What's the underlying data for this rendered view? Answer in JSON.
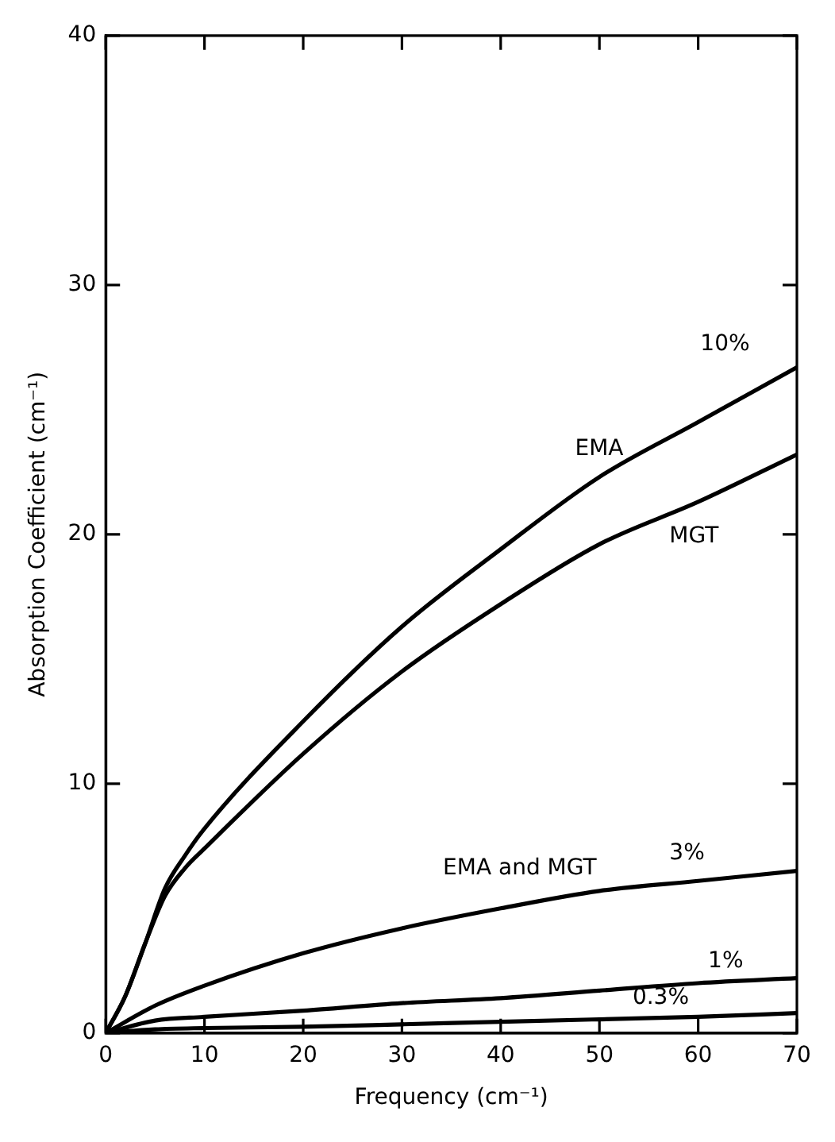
{
  "chart_data": {
    "type": "line",
    "xlabel": "Frequency (cm⁻¹)",
    "ylabel": "Absorption Coefficient (cm⁻¹)",
    "xlim": [
      0,
      70
    ],
    "xticks": [
      0,
      10,
      20,
      30,
      40,
      50,
      60,
      70
    ],
    "ylim": [
      0,
      40
    ],
    "yticks": [
      0,
      10,
      20,
      30,
      40
    ],
    "grid": false,
    "legend": false,
    "marker": "none",
    "line_style": "solid",
    "series": [
      {
        "name": "EMA",
        "color": "#000000",
        "x": [
          0,
          2,
          4,
          6,
          8,
          10,
          20,
          30,
          40,
          50,
          60,
          70
        ],
        "values": [
          0,
          1.5,
          3.6,
          5.8,
          7.1,
          8.2,
          12.5,
          16.3,
          19.4,
          22.3,
          24.5,
          26.7
        ]
      },
      {
        "name": "MGT",
        "color": "#000000",
        "x": [
          0,
          2,
          4,
          6,
          8,
          10,
          20,
          30,
          40,
          50,
          60,
          70
        ],
        "values": [
          0,
          1.5,
          3.6,
          5.5,
          6.6,
          7.4,
          11.2,
          14.5,
          17.2,
          19.6,
          21.3,
          23.2
        ]
      },
      {
        "name": "3%",
        "color": "#000000",
        "x": [
          0,
          5,
          10,
          20,
          30,
          40,
          50,
          60,
          70
        ],
        "values": [
          0,
          1.1,
          1.9,
          3.2,
          4.2,
          5.0,
          5.7,
          6.1,
          6.5
        ]
      },
      {
        "name": "1%",
        "color": "#000000",
        "x": [
          0,
          5,
          10,
          20,
          30,
          40,
          50,
          60,
          70
        ],
        "values": [
          0,
          0.5,
          0.65,
          0.9,
          1.2,
          1.4,
          1.7,
          2.0,
          2.2
        ]
      },
      {
        "name": "0.3%",
        "color": "#000000",
        "x": [
          0,
          5,
          10,
          20,
          30,
          40,
          50,
          60,
          70
        ],
        "values": [
          0,
          0.15,
          0.2,
          0.25,
          0.35,
          0.45,
          0.55,
          0.65,
          0.8
        ]
      }
    ],
    "annotations": [
      "10%",
      "EMA and MGT"
    ]
  }
}
